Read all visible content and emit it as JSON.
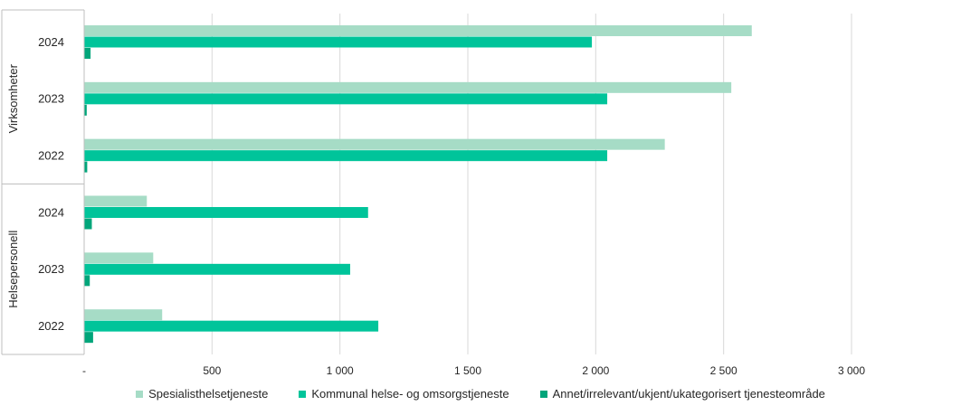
{
  "chart_data": {
    "type": "bar",
    "orientation": "horizontal",
    "groups": [
      {
        "label": "Virksomheter",
        "categories": [
          "2024",
          "2023",
          "2022"
        ]
      },
      {
        "label": "Helsepersonell",
        "categories": [
          "2024",
          "2023",
          "2022"
        ]
      }
    ],
    "series": [
      {
        "name": "Spesialisthelsetjeneste",
        "color": "#a6dcc6",
        "values": [
          2610,
          2530,
          2270,
          245,
          270,
          305
        ]
      },
      {
        "name": "Kommunal helse- og omsorgstjeneste",
        "color": "#00c49a",
        "values": [
          1985,
          2045,
          2045,
          1110,
          1040,
          1150
        ]
      },
      {
        "name": "Annet/irrelevant/ukjent/ukategorisert tjenesteområde",
        "color": "#00a57a",
        "values": [
          25,
          10,
          12,
          30,
          22,
          35
        ]
      }
    ],
    "xlim": [
      0,
      3000
    ],
    "xticks": [
      0,
      500,
      1000,
      1500,
      2000,
      2500,
      3000
    ],
    "xtick_labels": [
      "-",
      "500",
      "1 000",
      "1 500",
      "2 000",
      "2 500",
      "3 000"
    ],
    "grid": "vertical",
    "legend": "bottom"
  }
}
